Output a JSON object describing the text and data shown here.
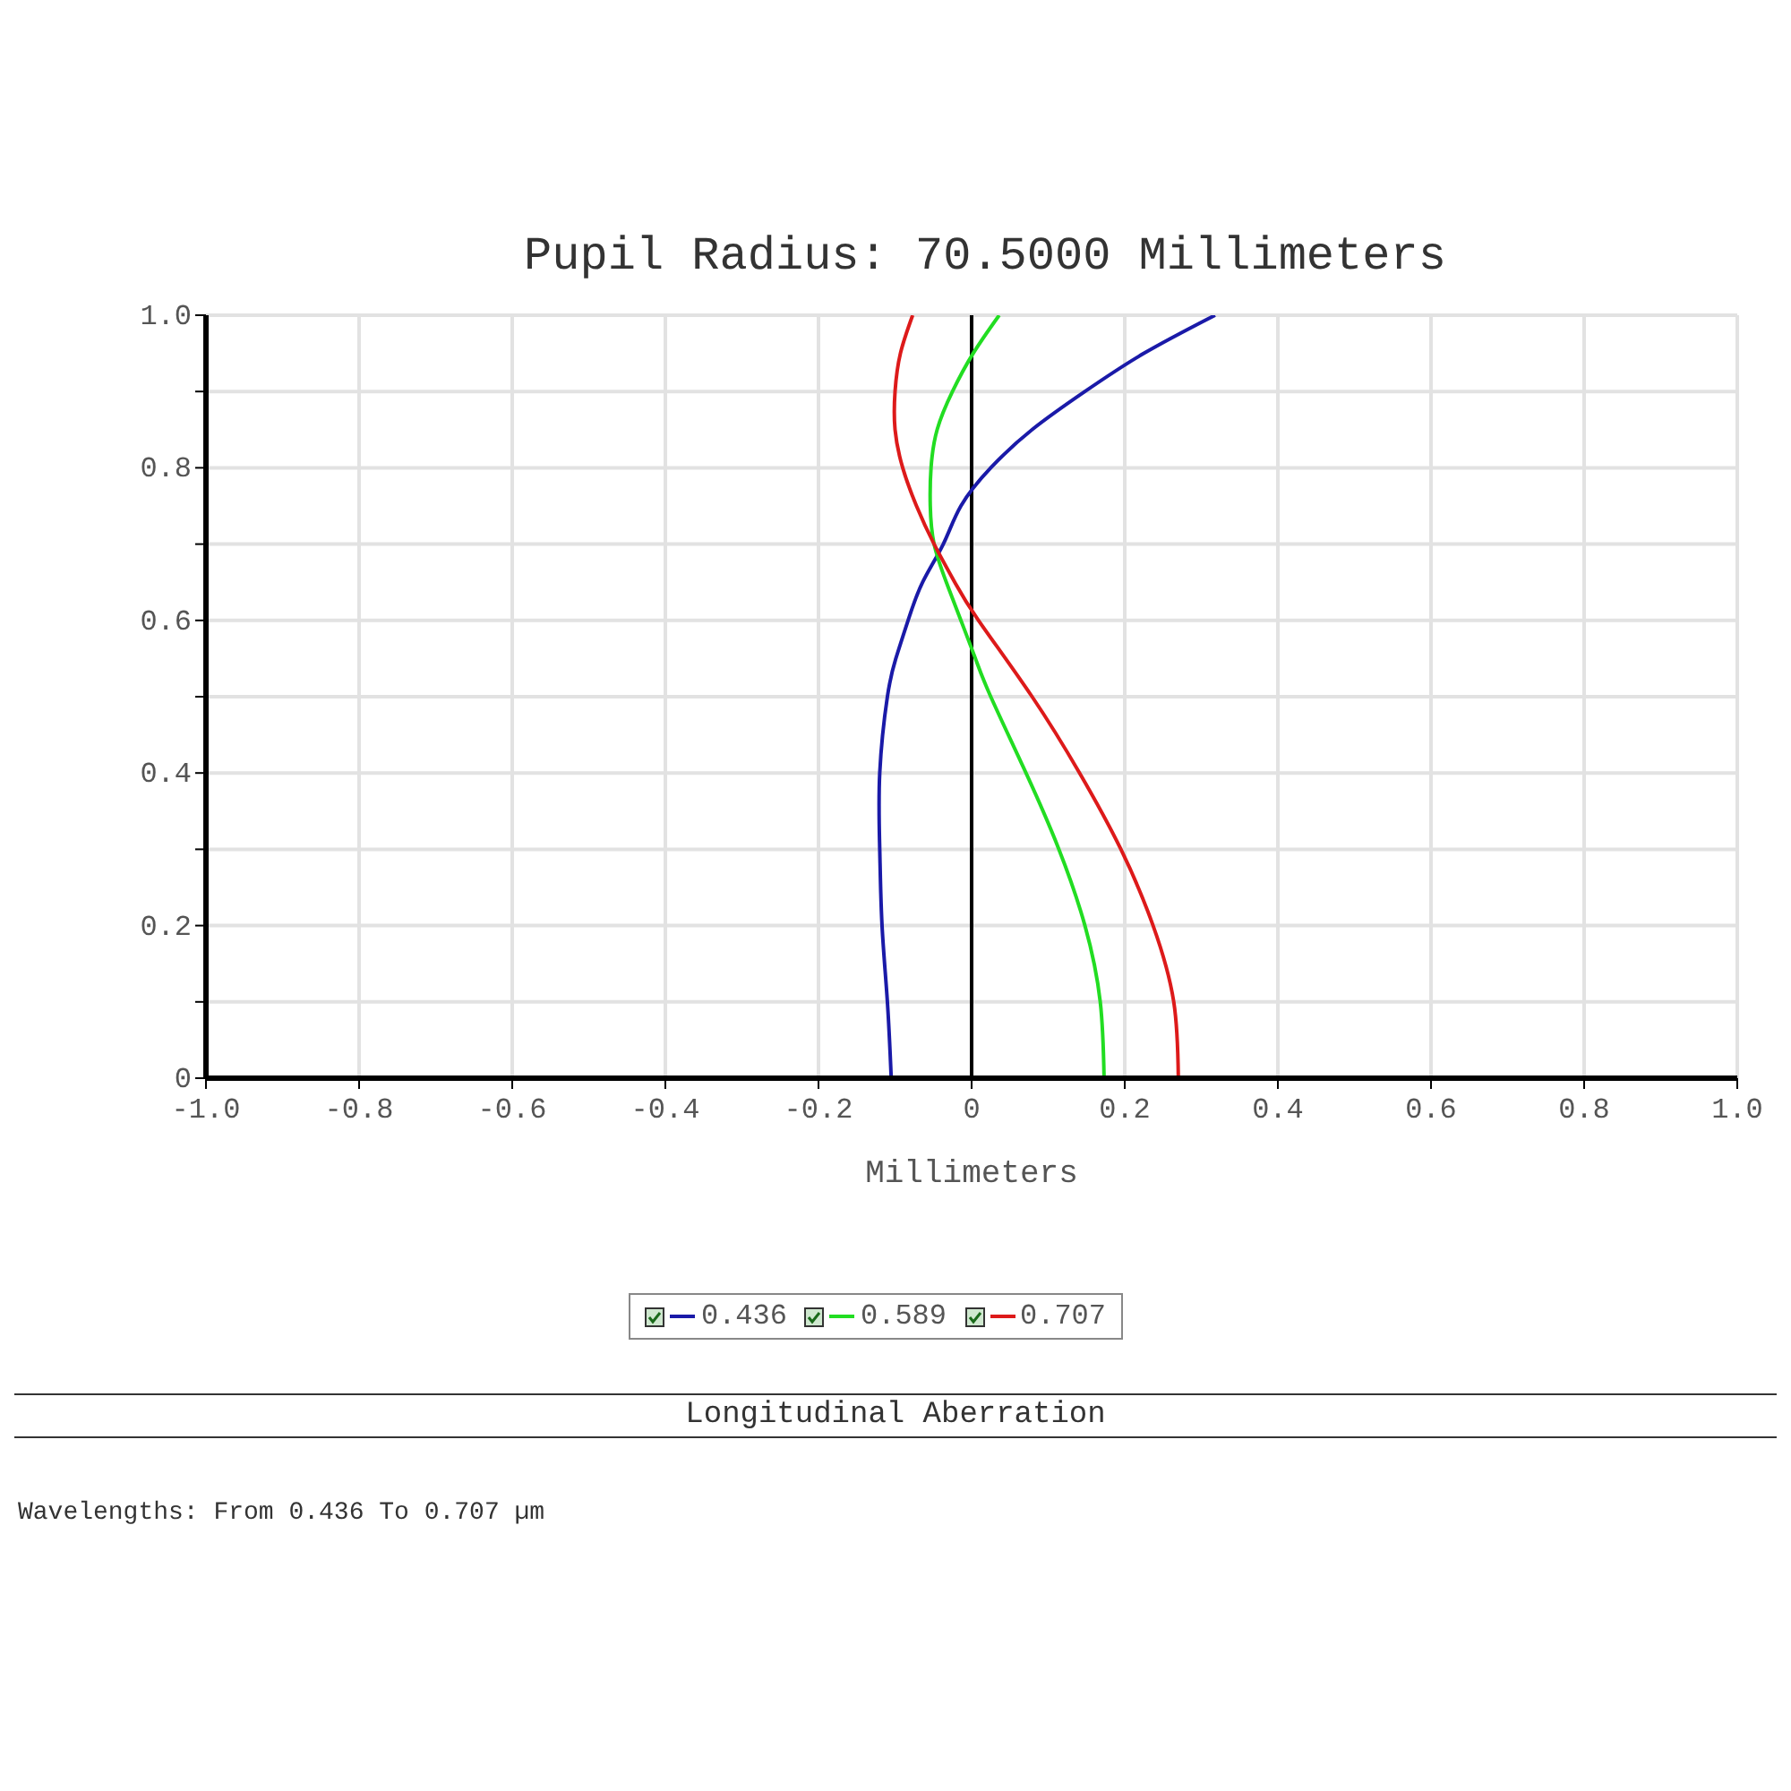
{
  "chart_data": {
    "type": "line",
    "title": "Pupil Radius: 70.5000 Millimeters",
    "xlabel": "Millimeters",
    "annotations": [
      "Longitudinal Aberration",
      "Wavelengths: From 0.436 To 0.707 µm"
    ],
    "xlim": [
      -1,
      1
    ],
    "ylim": [
      0,
      1
    ],
    "xticks": [
      {
        "value": -1,
        "label": "-1.0"
      },
      -0.8,
      -0.6,
      -0.4,
      -0.2,
      0,
      0.2,
      0.4,
      0.6,
      0.8,
      {
        "value": 1,
        "label": "1.0"
      }
    ],
    "yticks": [
      0,
      {
        "value": 0.1,
        "label": null
      },
      0.2,
      {
        "value": 0.3,
        "label": null
      },
      0.4,
      {
        "value": 0.5,
        "label": null
      },
      0.6,
      {
        "value": 0.7,
        "label": null
      },
      0.8,
      {
        "value": 0.9,
        "label": null
      },
      {
        "value": 1,
        "label": "1.0"
      }
    ],
    "grid": true,
    "legend": "bottom",
    "marker": "none",
    "line_style": "solid",
    "ref_lines": [
      {
        "axis": "x",
        "value": 0,
        "color": "#000000"
      }
    ],
    "series": [
      {
        "name": "0.436",
        "color": "#1a1aa8",
        "x": [
          -0.105,
          -0.11,
          -0.117,
          -0.12,
          -0.12,
          -0.11,
          -0.099,
          -0.083,
          -0.064,
          -0.037,
          -0.014,
          0.025,
          0.079,
          0.148,
          0.225,
          0.318
        ],
        "values": [
          0,
          0.1,
          0.2,
          0.3,
          0.4,
          0.5,
          0.55,
          0.6,
          0.65,
          0.7,
          0.75,
          0.8,
          0.85,
          0.9,
          0.95,
          1
        ]
      },
      {
        "name": "0.589",
        "color": "#22dd22",
        "x": [
          0.173,
          0.168,
          0.148,
          0.114,
          0.071,
          0.025,
          0.005,
          -0.014,
          -0.033,
          -0.049,
          -0.054,
          -0.053,
          -0.045,
          -0.025,
          0.002,
          0.036
        ],
        "values": [
          0,
          0.1,
          0.2,
          0.3,
          0.4,
          0.5,
          0.55,
          0.6,
          0.65,
          0.7,
          0.75,
          0.8,
          0.85,
          0.9,
          0.95,
          1
        ]
      },
      {
        "name": "0.707",
        "color": "#dd1a1a",
        "x": [
          0.27,
          0.264,
          0.237,
          0.195,
          0.141,
          0.079,
          0.009,
          -0.022,
          -0.049,
          -0.072,
          -0.09,
          -0.1,
          -0.1,
          -0.093,
          -0.077
        ],
        "values": [
          0,
          0.1,
          0.2,
          0.3,
          0.4,
          0.5,
          0.6,
          0.65,
          0.7,
          0.75,
          0.8,
          0.85,
          0.9,
          0.95,
          1
        ]
      }
    ]
  }
}
